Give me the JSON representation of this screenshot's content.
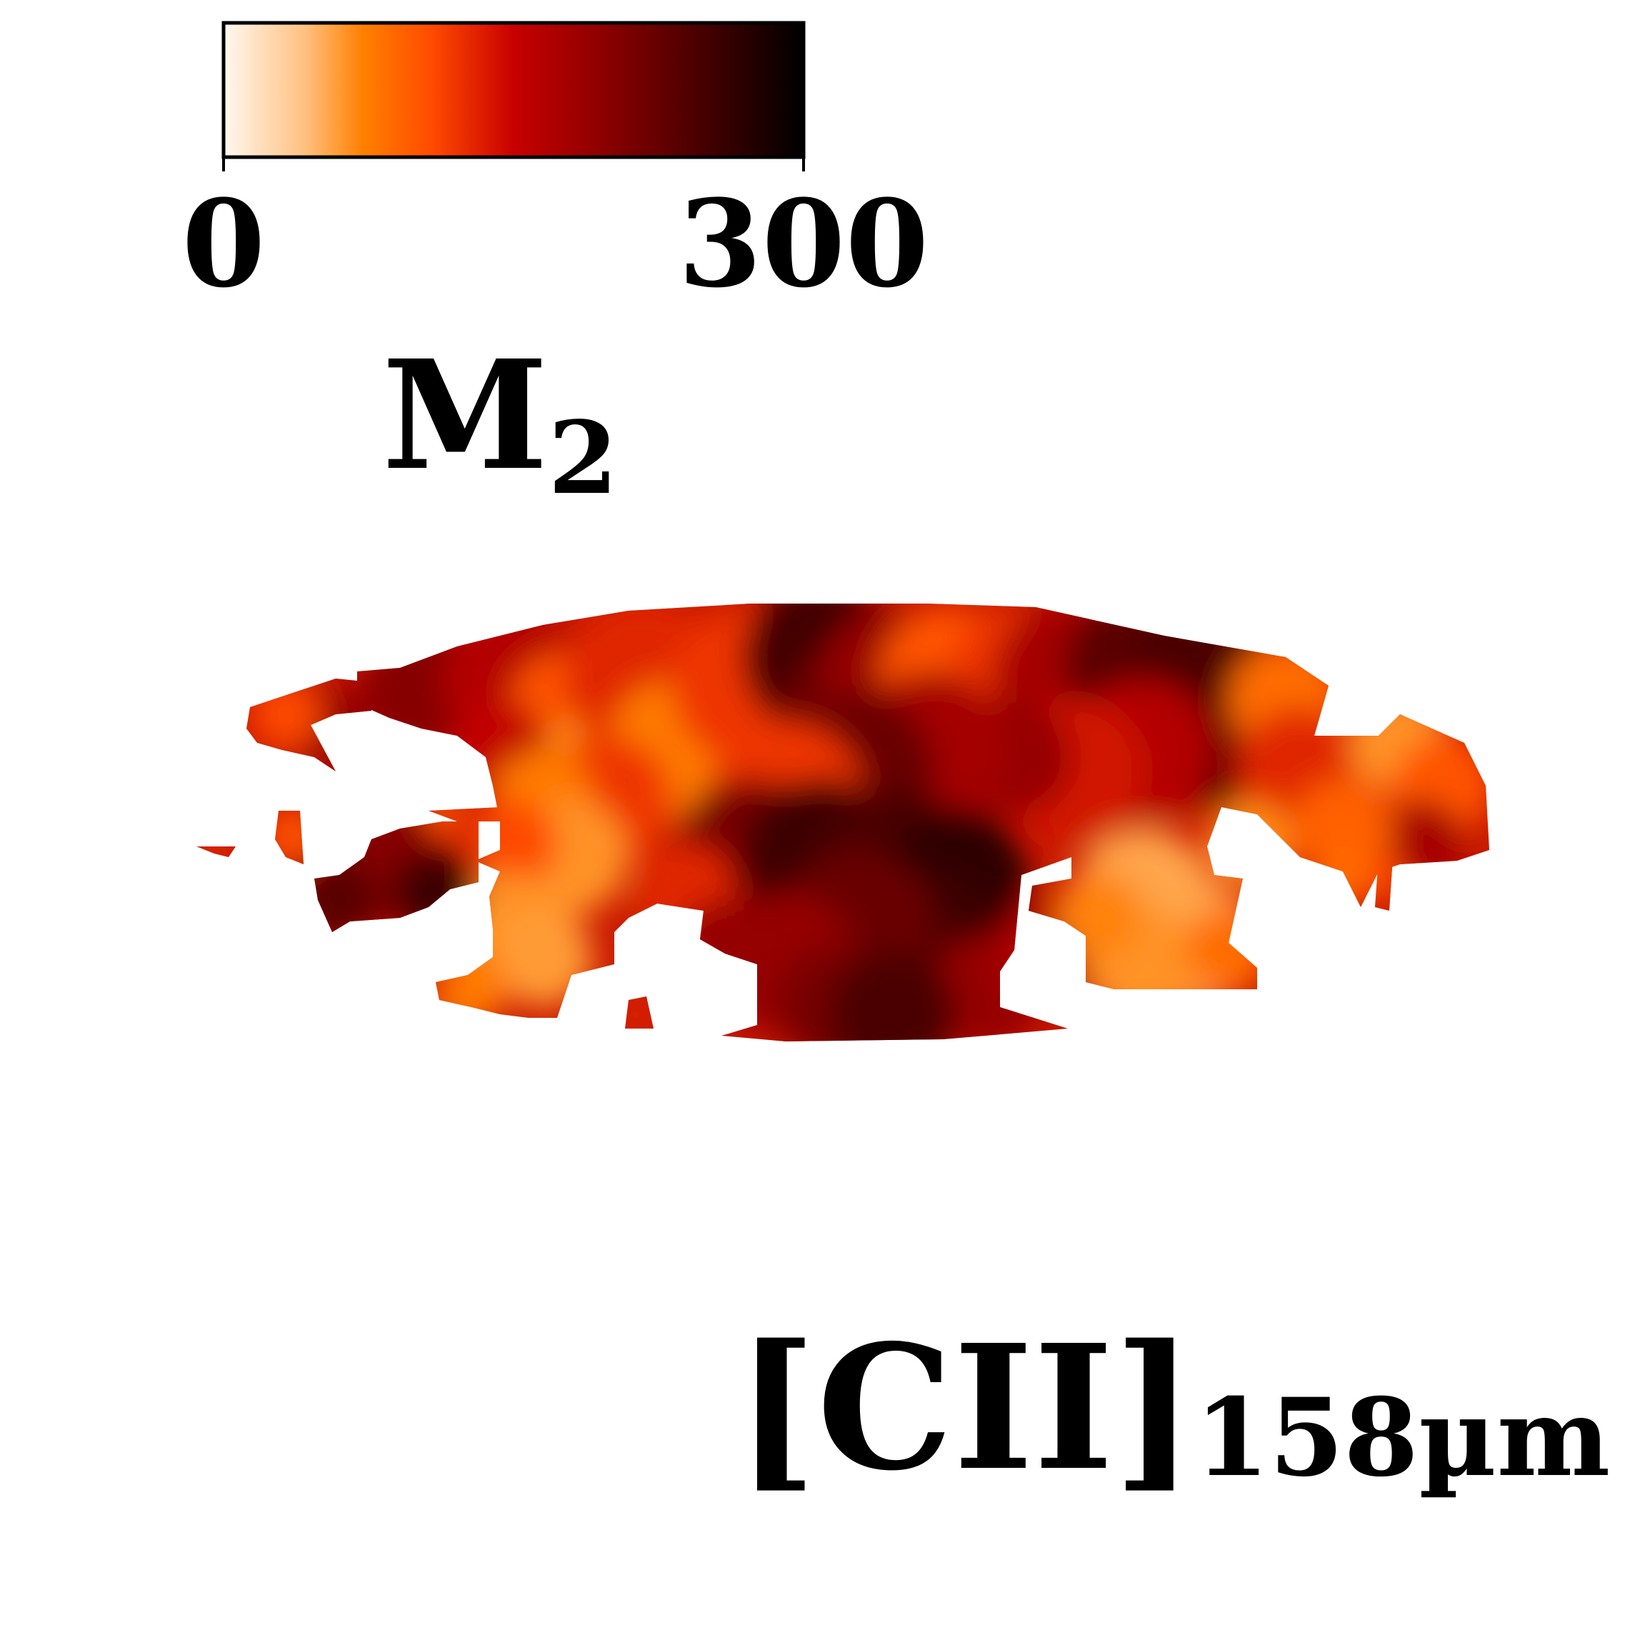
{
  "chart_data": {
    "type": "heatmap",
    "title": "",
    "colorbar": {
      "min": 0,
      "max": 300,
      "tick_labels": [
        "0",
        "300"
      ],
      "colormap": [
        "#fff8f0",
        "#ffa040",
        "#ff7f00",
        "#ff4a00",
        "#c00000",
        "#800000",
        "#400000",
        "#000000"
      ],
      "quantity_main": "M",
      "quantity_sub": "2",
      "placement": "top-left"
    },
    "line_label": {
      "main": "[CII]",
      "sub": "158µm",
      "placement": "bottom-right"
    },
    "map_description_values": {
      "value_range_shown": [
        0,
        300
      ],
      "dominant_levels": [
        40,
        80,
        120,
        170,
        220,
        270
      ]
    }
  }
}
